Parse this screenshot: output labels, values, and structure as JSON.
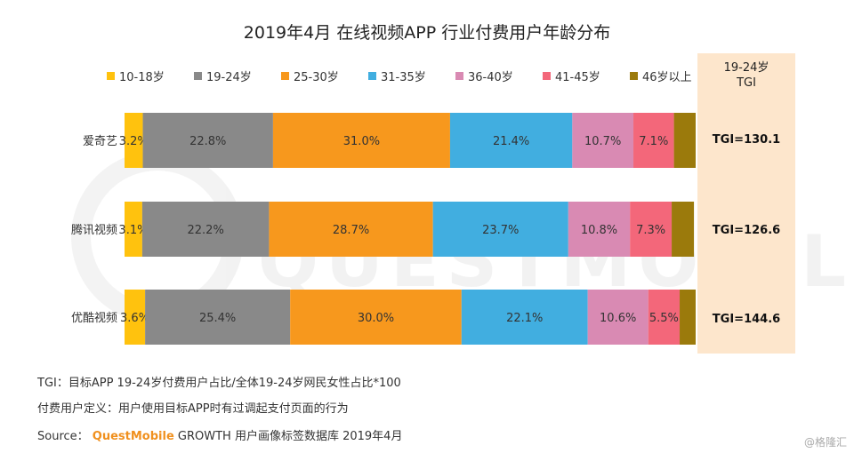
{
  "chart_data": {
    "type": "bar",
    "orientation": "horizontal",
    "stacked": true,
    "percent": true,
    "title": "2019年4月 在线视频APP 行业付费用户年龄分布",
    "categories": [
      "爱奇艺",
      "腾讯视频",
      "优酷视频"
    ],
    "series": [
      {
        "name": "10-18岁",
        "color": "#ffc20e",
        "values": [
          3.2,
          3.1,
          3.6
        ]
      },
      {
        "name": "19-24岁",
        "color": "#898989",
        "values": [
          22.8,
          22.2,
          25.4
        ]
      },
      {
        "name": "25-30岁",
        "color": "#f7981d",
        "values": [
          31.0,
          28.7,
          30.0
        ]
      },
      {
        "name": "31-35岁",
        "color": "#41aee0",
        "values": [
          21.4,
          23.7,
          22.1
        ]
      },
      {
        "name": "36-40岁",
        "color": "#d98ab3",
        "values": [
          10.7,
          10.8,
          10.6
        ]
      },
      {
        "name": "41-45岁",
        "color": "#f3677a",
        "values": [
          7.1,
          7.3,
          5.5
        ]
      },
      {
        "name": "46岁以上",
        "color": "#9b7a0c",
        "values": [
          3.8,
          3.9,
          2.8
        ]
      }
    ],
    "labels": [
      [
        "3.2%",
        "22.8%",
        "31.0%",
        "21.4%",
        "10.7%",
        "7.1%",
        ""
      ],
      [
        "3.1%",
        "22.2%",
        "28.7%",
        "23.7%",
        "10.8%",
        "7.3%",
        ""
      ],
      [
        "3.6%",
        "25.4%",
        "30.0%",
        "22.1%",
        "10.6%",
        "5.5%",
        ""
      ]
    ],
    "xlim": [
      0,
      100
    ],
    "legend_position": "top",
    "grid": false
  },
  "tgi": {
    "header_line1": "19-24岁",
    "header_line2": "TGI",
    "values": [
      "TGI=130.1",
      "TGI=126.6",
      "TGI=144.6"
    ]
  },
  "footnotes": {
    "line1": "TGI：目标APP 19-24岁付费用户占比/全体19-24岁网民女性占比*100",
    "line2": "付费用户定义：用户使用目标APP时有过调起支付页面的行为",
    "source_prefix": "Source：",
    "source_brand": "QuestMobile",
    "source_rest": " GROWTH 用户画像标签数据库 2019年4月"
  },
  "watermark": {
    "text": "QUESTMOBILE"
  },
  "corner_mark": "@格隆汇"
}
